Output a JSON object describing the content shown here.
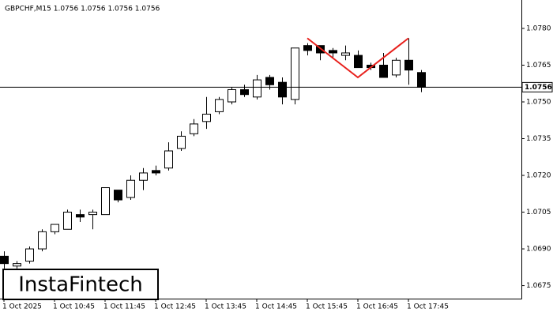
{
  "chart_data": {
    "type": "candlestick",
    "title": "GBPCHF,M15  1.0756 1.0756 1.0756 1.0756",
    "watermark": "InstaFintech",
    "categories": [
      "1 Oct 2025",
      null,
      null,
      null,
      "1 Oct 10:45",
      null,
      null,
      null,
      "1 Oct 11:45",
      null,
      null,
      null,
      "1 Oct 12:45",
      null,
      null,
      null,
      "1 Oct 13:45",
      null,
      null,
      null,
      "1 Oct 14:45",
      null,
      null,
      null,
      "1 Oct 15:45",
      null,
      null,
      null,
      "1 Oct 16:45",
      null,
      null,
      null,
      "1 Oct 17:45",
      null
    ],
    "open": [
      1.0687,
      1.0683,
      1.0685,
      1.069,
      1.0697,
      1.0698,
      1.0704,
      1.0704,
      1.0704,
      1.0714,
      1.0711,
      1.0718,
      1.0722,
      1.0723,
      1.0731,
      1.0737,
      1.0742,
      1.0746,
      1.075,
      1.0755,
      1.0752,
      1.076,
      1.0758,
      1.0751,
      1.0773,
      1.0773,
      1.0771,
      1.0769,
      1.0769,
      1.0765,
      1.0765,
      1.0761,
      1.0767,
      1.0762
    ],
    "high": [
      1.0689,
      1.0685,
      1.0691,
      1.0698,
      1.07,
      1.0706,
      1.0706,
      1.0706,
      1.0715,
      1.0714,
      1.072,
      1.0723,
      1.0724,
      1.07335,
      1.0738,
      1.0743,
      1.0752,
      1.0752,
      1.0756,
      1.0757,
      1.0761,
      1.0761,
      1.076,
      1.0772,
      1.0774,
      1.0773,
      1.0772,
      1.0773,
      1.0771,
      1.0766,
      1.077,
      1.0768,
      1.0776,
      1.0763
    ],
    "low": [
      1.0682,
      1.0682,
      1.0684,
      1.0689,
      1.0696,
      1.0698,
      1.0701,
      1.0698,
      1.0704,
      1.0709,
      1.071,
      1.0714,
      1.072,
      1.0722,
      1.073,
      1.0736,
      1.0739,
      1.0745,
      1.0749,
      1.0752,
      1.0751,
      1.0755,
      1.0749,
      1.0749,
      1.0769,
      1.0767,
      1.0768,
      1.0767,
      1.0764,
      1.0763,
      1.076,
      1.076,
      1.0757,
      1.0754
    ],
    "close": [
      1.0684,
      1.0684,
      1.069,
      1.0697,
      1.07,
      1.0705,
      1.0703,
      1.0705,
      1.0715,
      1.071,
      1.0718,
      1.0721,
      1.0721,
      1.073,
      1.0736,
      1.0741,
      1.0745,
      1.0751,
      1.0755,
      1.0753,
      1.0759,
      1.0757,
      1.0752,
      1.0772,
      1.0771,
      1.077,
      1.077,
      1.077,
      1.0764,
      1.0764,
      1.076,
      1.0767,
      1.0763,
      1.0756
    ],
    "up_color": "#ffffff",
    "down_color": "#000000",
    "ylim": [
      1.06697,
      1.07916
    ],
    "yticks": [
      {
        "value": 1.0675,
        "label": "1.0675"
      },
      {
        "value": 1.069,
        "label": "1.0690"
      },
      {
        "value": 1.0705,
        "label": "1.0705"
      },
      {
        "value": 1.072,
        "label": "1.0720"
      },
      {
        "value": 1.0735,
        "label": "1.0735"
      },
      {
        "value": 1.075,
        "label": "1.0750"
      },
      {
        "value": 1.0765,
        "label": "1.0765"
      },
      {
        "value": 1.078,
        "label": "1.0780"
      }
    ],
    "current": {
      "value": 1.0756,
      "label": "1.0756"
    },
    "pattern": {
      "color": "#e8211d",
      "points": [
        [
          24,
          1.0776
        ],
        [
          28,
          1.076
        ],
        [
          32,
          1.0776
        ]
      ]
    }
  }
}
